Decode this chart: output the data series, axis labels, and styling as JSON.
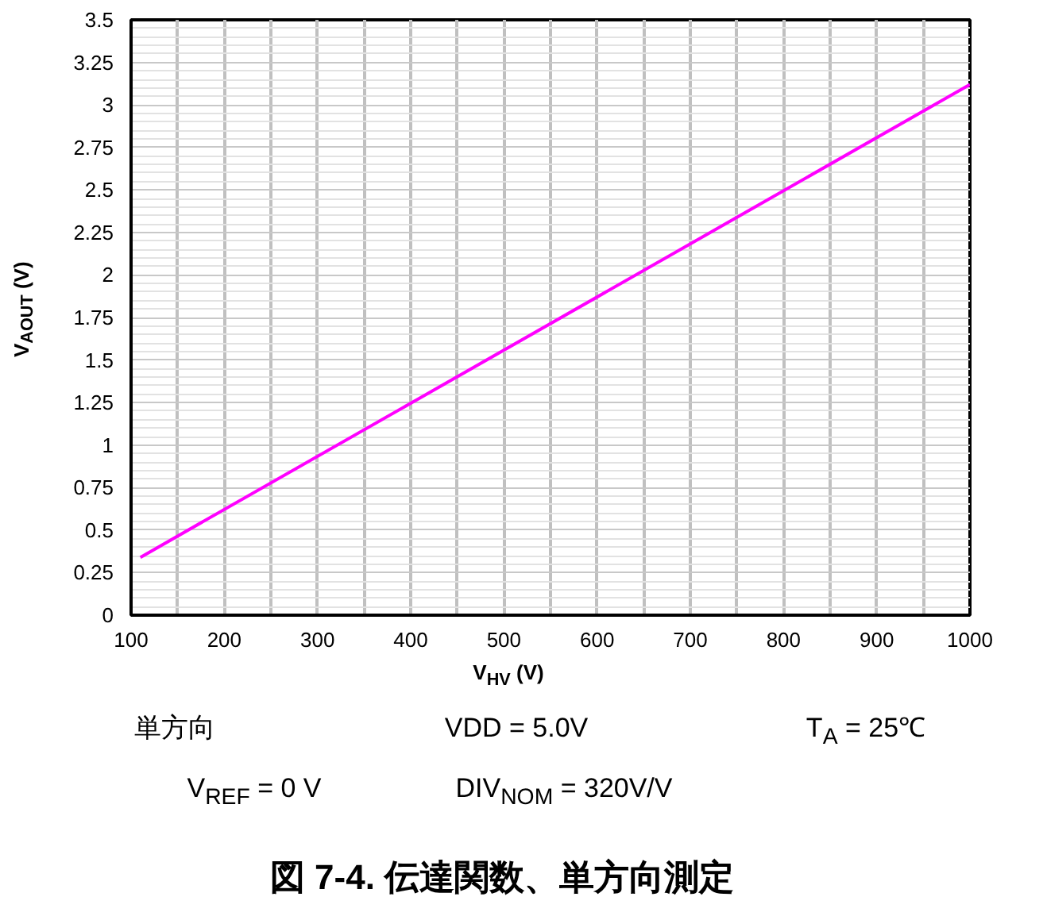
{
  "chart_data": {
    "type": "line",
    "title": "図 7-4. 伝達関数、単方向測定",
    "xlabel": "V$_{HV}$ (V)",
    "ylabel": "V$_{AOUT}$ (V)",
    "annotations": [
      "単方向",
      "VDD = 5.0V",
      "T$_{A}$ = 25℃",
      "V$_{REF}$ = 0 V",
      "DIV$_{NOM}$ = 320V/V"
    ],
    "series": [
      {
        "color": "#ff00ff",
        "x": [
          110,
          1000
        ],
        "values": [
          0.34,
          3.12
        ]
      }
    ],
    "xlim": [
      100,
      1000
    ],
    "ylim": [
      0,
      3.5
    ],
    "xticks": [
      100,
      {
        "value": 150,
        "label": null
      },
      200,
      {
        "value": 250,
        "label": null
      },
      300,
      {
        "value": 350,
        "label": null
      },
      400,
      {
        "value": 450,
        "label": null
      },
      500,
      {
        "value": 550,
        "label": null
      },
      600,
      {
        "value": 650,
        "label": null
      },
      700,
      {
        "value": 750,
        "label": null
      },
      800,
      {
        "value": 850,
        "label": null
      },
      900,
      {
        "value": 950,
        "label": null
      },
      1000
    ],
    "yticks": [
      0,
      0.25,
      0.5,
      0.75,
      1,
      1.25,
      1.5,
      1.75,
      2,
      2.25,
      2.5,
      2.75,
      3,
      3.25,
      3.5
    ],
    "grid": true,
    "marker": "none",
    "line_style": "solid"
  }
}
